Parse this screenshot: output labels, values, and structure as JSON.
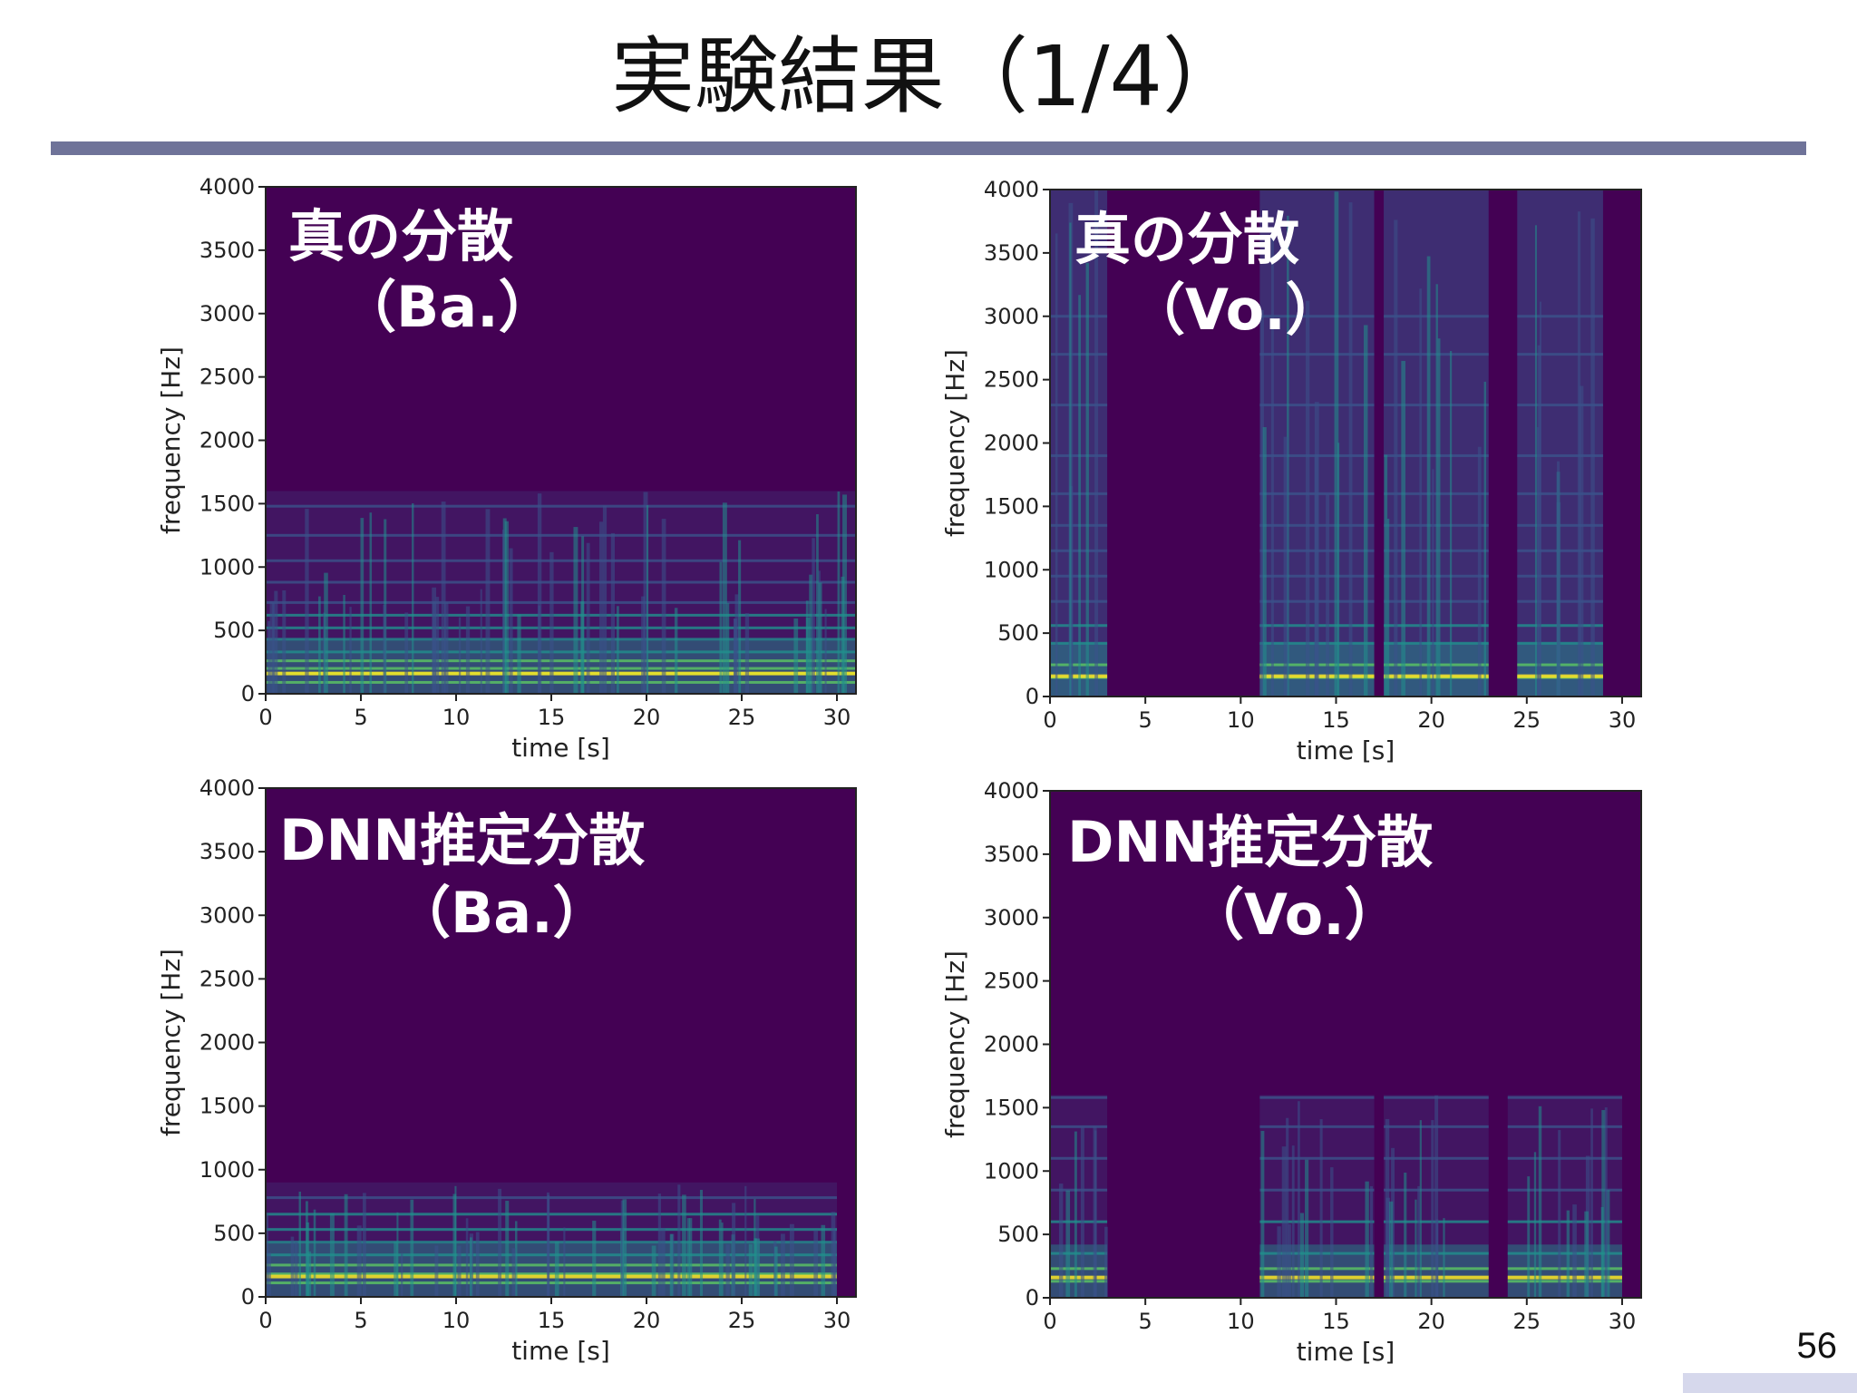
{
  "slide": {
    "title": "実験結果（1/4）",
    "page_number": "56"
  },
  "colors": {
    "background": "#440154",
    "low": "#3b528b",
    "mid": "#21908d",
    "high": "#5dc863",
    "peak": "#fde725",
    "rule": "#6f7399"
  },
  "chart_data": [
    {
      "type": "heatmap",
      "label_line1": "真の分散",
      "label_line2": "（Ba.）",
      "xlabel": "time [s]",
      "ylabel": "frequency [Hz]",
      "xlim": [
        0,
        31
      ],
      "ylim": [
        0,
        4000
      ],
      "x_ticks": [
        "0",
        "5",
        "10",
        "15",
        "20",
        "25",
        "30"
      ],
      "y_ticks": [
        "0",
        "500",
        "1000",
        "1500",
        "2000",
        "2500",
        "3000",
        "3500",
        "4000"
      ],
      "active_segments_s": [
        [
          0,
          11
        ],
        [
          11,
          31
        ]
      ],
      "energy_extent_hz": 1600,
      "harmonic_lines_hz": [
        90,
        160,
        200,
        260,
        330,
        430,
        520,
        620,
        720,
        880,
        1050,
        1250,
        1480
      ]
    },
    {
      "type": "heatmap",
      "label_line1": "真の分散",
      "label_line2": "（Vo.）",
      "xlabel": "time [s]",
      "ylabel": "frequency [Hz]",
      "xlim": [
        0,
        31
      ],
      "ylim": [
        0,
        4000
      ],
      "x_ticks": [
        "0",
        "5",
        "10",
        "15",
        "20",
        "25",
        "30"
      ],
      "y_ticks": [
        "0",
        "500",
        "1000",
        "1500",
        "2000",
        "2500",
        "3000",
        "3500",
        "4000"
      ],
      "active_segments_s": [
        [
          0,
          3
        ],
        [
          11,
          17
        ],
        [
          17.5,
          23
        ],
        [
          24.5,
          29
        ]
      ],
      "energy_extent_hz": 4000,
      "harmonic_lines_hz": [
        150,
        250,
        420,
        560,
        750,
        950,
        1150,
        1350,
        1600,
        1900,
        2300,
        2700,
        3000
      ]
    },
    {
      "type": "heatmap",
      "label_line1": "DNN推定分散",
      "label_line2": "（Ba.）",
      "xlabel": "time [s]",
      "ylabel": "frequency [Hz]",
      "xlim": [
        0,
        31
      ],
      "ylim": [
        0,
        4000
      ],
      "x_ticks": [
        "0",
        "5",
        "10",
        "15",
        "20",
        "25",
        "30"
      ],
      "y_ticks": [
        "0",
        "500",
        "1000",
        "1500",
        "2000",
        "2500",
        "3000",
        "3500",
        "4000"
      ],
      "active_segments_s": [
        [
          0,
          11
        ],
        [
          11,
          30
        ]
      ],
      "energy_extent_hz": 900,
      "harmonic_lines_hz": [
        110,
        180,
        250,
        330,
        430,
        530,
        650,
        780
      ]
    },
    {
      "type": "heatmap",
      "label_line1": "DNN推定分散",
      "label_line2": "（Vo.）",
      "xlabel": "time [s]",
      "ylabel": "frequency [Hz]",
      "xlim": [
        0,
        31
      ],
      "ylim": [
        0,
        4000
      ],
      "x_ticks": [
        "0",
        "5",
        "10",
        "15",
        "20",
        "25",
        "30"
      ],
      "y_ticks": [
        "0",
        "500",
        "1000",
        "1500",
        "2000",
        "2500",
        "3000",
        "3500",
        "4000"
      ],
      "active_segments_s": [
        [
          0,
          3
        ],
        [
          11,
          17
        ],
        [
          17.5,
          23
        ],
        [
          24,
          30
        ]
      ],
      "energy_extent_hz": 1600,
      "harmonic_lines_hz": [
        130,
        230,
        350,
        600,
        850,
        1100,
        1350,
        1580
      ]
    }
  ]
}
